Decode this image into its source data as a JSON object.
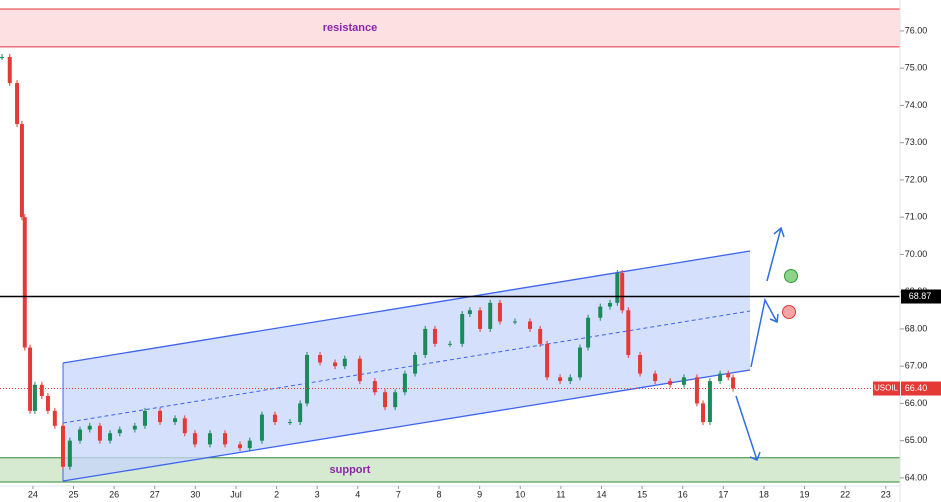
{
  "chart_data": {
    "type": "candlestick",
    "symbol": "USOIL",
    "x": [
      -0.76,
      -0.57,
      -0.39,
      -0.27,
      -0.2,
      -0.07,
      0.05,
      0.22,
      0.37,
      0.54,
      0.74,
      0.91,
      1.16,
      1.4,
      1.65,
      1.9,
      2.14,
      2.51,
      2.76,
      3.13,
      3.5,
      3.74,
      3.99,
      4.36,
      4.73,
      5.1,
      5.34,
      5.64,
      5.96,
      6.33,
      6.58,
      6.75,
      7.07,
      7.44,
      7.68,
      8.05,
      8.42,
      8.67,
      8.92,
      9.16,
      9.41,
      9.66,
      9.9,
      10.27,
      10.57,
      10.76,
      11.01,
      11.26,
      11.5,
      11.87,
      12.24,
      12.49,
      12.66,
      12.98,
      13.23,
      13.47,
      13.67,
      13.97,
      14.21,
      14.39,
      14.51,
      14.66,
      14.95,
      15.32,
      15.69,
      16.03,
      16.35,
      16.5,
      16.67,
      16.92,
      17.12,
      17.24
    ],
    "close": [
      75.3,
      74.6,
      73.5,
      71,
      67.5,
      65.8,
      66.5,
      66.2,
      65.8,
      65.4,
      64.3,
      65.0,
      65.3,
      65.4,
      65.0,
      65.2,
      65.3,
      65.4,
      65.8,
      65.5,
      65.6,
      65.2,
      64.9,
      65.2,
      64.9,
      64.8,
      65.0,
      65.7,
      65.5,
      65.5,
      66.0,
      67.3,
      67.1,
      67.0,
      67.2,
      66.6,
      66.3,
      65.9,
      66.3,
      66.8,
      67.3,
      68.0,
      67.6,
      67.6,
      68.4,
      68.5,
      68.0,
      68.7,
      68.2,
      68.2,
      68.0,
      67.6,
      66.7,
      66.6,
      66.7,
      67.5,
      68.3,
      68.6,
      68.7,
      69.5,
      68.5,
      67.3,
      66.8,
      66.6,
      66.5,
      66.7,
      66.0,
      65.5,
      66.6,
      66.8,
      66.7,
      66.4
    ],
    "up_color": "#1b8a5a",
    "down_color": "#e53935",
    "xlim": [
      -0.81,
      21.35
    ],
    "xticks": [
      {
        "value": 0,
        "label": "24"
      },
      {
        "value": 1,
        "label": "25"
      },
      {
        "value": 2,
        "label": "26"
      },
      {
        "value": 3,
        "label": "27"
      },
      {
        "value": 4,
        "label": "30"
      },
      {
        "value": 5,
        "label": "Jul"
      },
      {
        "value": 6,
        "label": "2"
      },
      {
        "value": 7,
        "label": "3"
      },
      {
        "value": 8,
        "label": "4"
      },
      {
        "value": 9,
        "label": "7"
      },
      {
        "value": 10,
        "label": "8"
      },
      {
        "value": 11,
        "label": "9"
      },
      {
        "value": 12,
        "label": "10"
      },
      {
        "value": 13,
        "label": "11"
      },
      {
        "value": 14,
        "label": "14"
      },
      {
        "value": 15,
        "label": "15"
      },
      {
        "value": 16,
        "label": "16"
      },
      {
        "value": 17,
        "label": "17"
      },
      {
        "value": 18,
        "label": "18"
      },
      {
        "value": 19,
        "label": "19"
      },
      {
        "value": 20,
        "label": "22"
      },
      {
        "value": 21,
        "label": "23"
      }
    ],
    "ylim": [
      63.81,
      76.83
    ],
    "yticks": [
      {
        "value": 64,
        "label": "64.00"
      },
      {
        "value": 65,
        "label": "65.00"
      },
      {
        "value": 66,
        "label": "66.00"
      },
      {
        "value": 67,
        "label": "67.00"
      },
      {
        "value": 68,
        "label": "68.00"
      },
      {
        "value": 69,
        "label": "69.00"
      },
      {
        "value": 70,
        "label": "70.00"
      },
      {
        "value": 71,
        "label": "71.00"
      },
      {
        "value": 72,
        "label": "72.00"
      },
      {
        "value": 73,
        "label": "73.00"
      },
      {
        "value": 74,
        "label": "74.00"
      },
      {
        "value": 75,
        "label": "75.00"
      },
      {
        "value": 76,
        "label": "76.00"
      }
    ],
    "horizontal_line": 68.87,
    "last_price": {
      "value": 66.4,
      "label": "66.40"
    },
    "resistance": {
      "label": "resistance",
      "range": [
        75.57,
        76.59
      ]
    },
    "support": {
      "label": "support",
      "range": [
        63.89,
        64.54
      ]
    }
  }
}
